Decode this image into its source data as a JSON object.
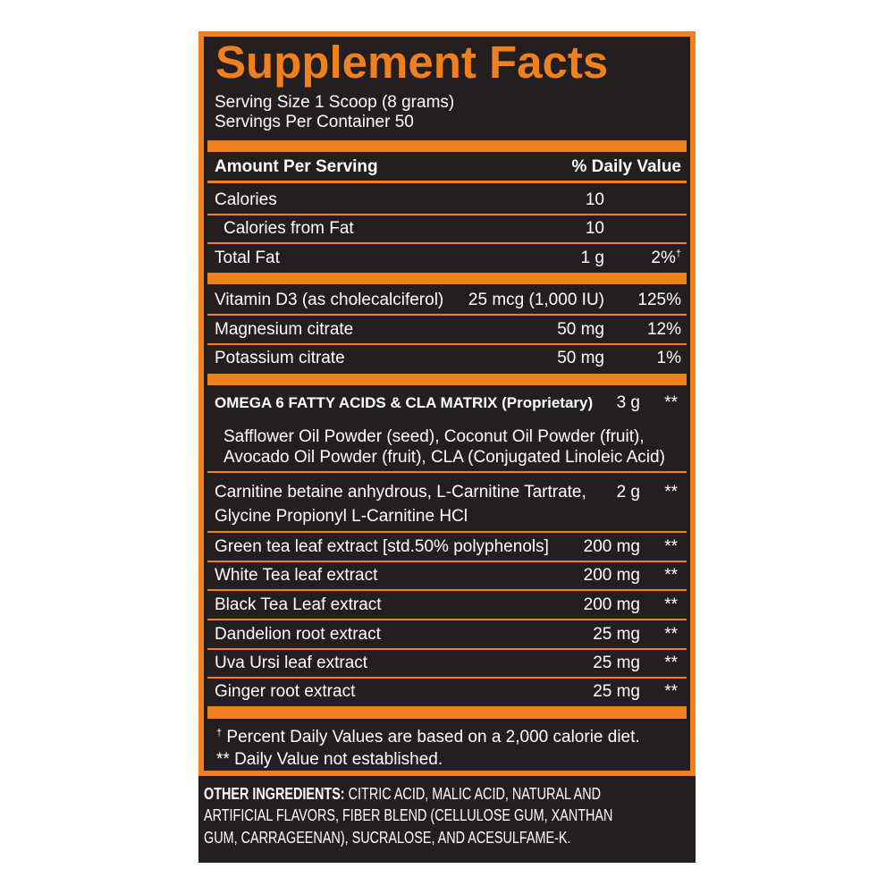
{
  "title": "Supplement Facts",
  "serving_size": "Serving Size 1 Scoop (8 grams)",
  "servings_per_container": "Servings Per Container 50",
  "header": {
    "amount": "Amount Per Serving",
    "daily_value": "% Daily Value"
  },
  "rows": [
    {
      "name": "Calories",
      "amount": "10"
    },
    {
      "name": "Calories from Fat",
      "amount": "10"
    },
    {
      "name": "Total Fat",
      "amount": "1 g",
      "dv": "2%",
      "dv_mark": "†"
    },
    {
      "name": "Vitamin D3 (as cholecalciferol)",
      "amount": "25 mcg (1,000 IU)",
      "dv": "125%"
    },
    {
      "name": "Magnesium citrate",
      "amount": "50 mg",
      "dv": "12%"
    },
    {
      "name": "Potassium citrate",
      "amount": "50 mg",
      "dv": "1%"
    },
    {
      "name": "OMEGA 6 FATTY ACIDS & CLA MATRIX (Proprietary)",
      "amount": "3 g",
      "dv": "**",
      "ingredients": [
        "Safflower Oil Powder (seed), Coconut Oil Powder (fruit),",
        "Avocado Oil Powder (fruit), CLA (Conjugated Linoleic Acid)"
      ]
    },
    {
      "name_lines": [
        "Carnitine betaine anhydrous, L-Carnitine Tartrate,",
        "Glycine Propionyl L-Carnitine HCl"
      ],
      "amount": "2 g",
      "dv": "**"
    },
    {
      "name": "Green tea leaf extract [std.50% polyphenols]",
      "amount": "200 mg",
      "dv": "**"
    },
    {
      "name": "White Tea leaf extract",
      "amount": "200 mg",
      "dv": "**"
    },
    {
      "name": "Black Tea Leaf extract",
      "amount": "200 mg",
      "dv": "**"
    },
    {
      "name": "Dandelion root extract",
      "amount": "25 mg",
      "dv": "**"
    },
    {
      "name": "Uva Ursi leaf extract",
      "amount": "25 mg",
      "dv": "**"
    },
    {
      "name": "Ginger root extract",
      "amount": "25 mg",
      "dv": "**"
    }
  ],
  "footnotes": [
    {
      "mark": "†",
      "text": "Percent Daily Values are based on a 2,000 calorie diet."
    },
    {
      "mark": "**",
      "text": "Daily Value not established."
    }
  ],
  "other_ingredients": {
    "label": "OTHER INGREDIENTS:",
    "lines": [
      "CITRIC ACID, MALIC ACID, NATURAL AND",
      "ARTIFICIAL FLAVORS, FIBER BLEND (CELLULOSE GUM, XANTHAN",
      "GUM, CARRAGEENAN), SUCRALOSE, AND ACESULFAME-K."
    ]
  }
}
